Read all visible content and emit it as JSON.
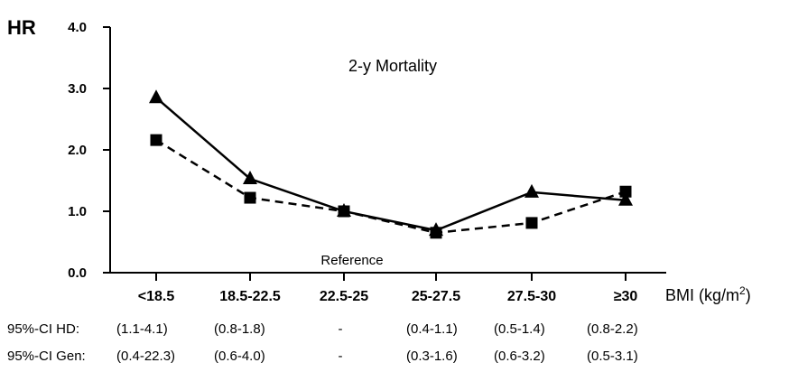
{
  "chart_data": {
    "type": "line",
    "title": "2-y Mortality",
    "ylabel": "HR",
    "xlabel": "BMI (kg/m",
    "xlabel_sup": "2",
    "xlabel_close": ")",
    "categories": [
      "<18.5",
      "18.5-22.5",
      "22.5-25",
      "25-27.5",
      "27.5-30",
      "≥30"
    ],
    "yticks": [
      "0.0",
      "1.0",
      "2.0",
      "3.0",
      "4.0"
    ],
    "ylim": [
      0,
      4
    ],
    "series": [
      {
        "marker": "triangle",
        "line": "solid",
        "values": [
          2.85,
          1.53,
          1.0,
          0.69,
          1.31,
          1.18
        ]
      },
      {
        "marker": "square",
        "line": "dashed",
        "values": [
          2.16,
          1.22,
          1.0,
          0.65,
          0.81,
          1.32
        ]
      }
    ],
    "annotation": "Reference",
    "ci_rows": [
      {
        "label": "95%-CI HD:",
        "values": [
          "(1.1-4.1)",
          "(0.8-1.8)",
          "-",
          "(0.4-1.1)",
          "(0.5-1.4)",
          "(0.8-2.2)"
        ]
      },
      {
        "label": "95%-CI Gen:",
        "values": [
          "(0.4-22.3)",
          "(0.6-4.0)",
          "-",
          "(0.3-1.6)",
          "(0.6-3.2)",
          "(0.5-3.1)"
        ]
      }
    ]
  }
}
